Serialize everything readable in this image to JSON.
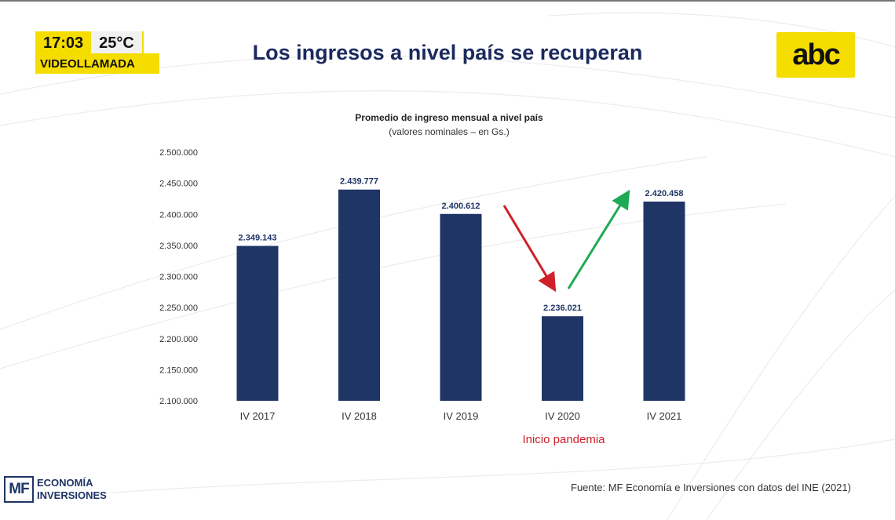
{
  "overlay": {
    "time": "17:03",
    "temperature": "25°C",
    "label": "VIDEOLLAMADA"
  },
  "header": {
    "title": "Los ingresos a nivel país se recuperan",
    "logo_text": "abc"
  },
  "chart_data": {
    "type": "bar",
    "title": "Promedio de ingreso mensual a nivel país",
    "subtitle": "(valores nominales – en Gs.)",
    "categories": [
      "IV 2017",
      "IV 2018",
      "IV 2019",
      "IV 2020",
      "IV 2021"
    ],
    "values": [
      2349143,
      2439777,
      2400612,
      2236021,
      2420458
    ],
    "data_labels": [
      "2.349.143",
      "2.439.777",
      "2.400.612",
      "2.236.021",
      "2.420.458"
    ],
    "ylim": [
      2100000,
      2500000
    ],
    "yticks": [
      2500000,
      2450000,
      2400000,
      2350000,
      2300000,
      2250000,
      2200000,
      2150000,
      2100000
    ],
    "ytick_labels": [
      "2.500.000",
      "2.450.000",
      "2.400.000",
      "2.350.000",
      "2.300.000",
      "2.250.000",
      "2.200.000",
      "2.150.000",
      "2.100.000"
    ],
    "xlabel": "",
    "ylabel": "",
    "grid": false,
    "bar_color": "#1f3566",
    "annotations": {
      "note": "Inicio pandemia",
      "down_arrow_color": "#d0202a",
      "up_arrow_color": "#1faa55"
    }
  },
  "footer": {
    "logo_mark": "MF",
    "logo_line1": "ECONOMÍA",
    "logo_line2": "INVERSIONES",
    "source": "Fuente: MF Economía e Inversiones con datos del INE (2021)"
  }
}
